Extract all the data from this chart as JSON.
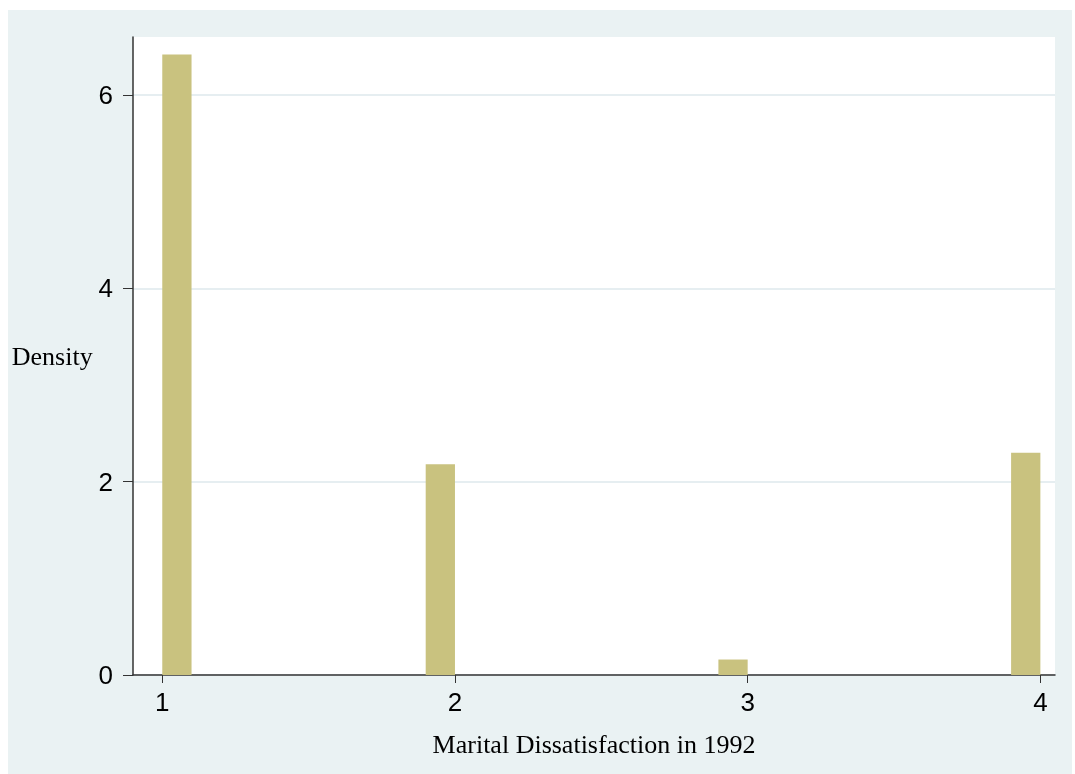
{
  "chart_data": {
    "type": "histogram",
    "xlabel": "Marital Dissatisfaction in 1992",
    "ylabel": "Density",
    "bins": [
      1,
      1.1,
      1.2,
      1.3,
      1.4,
      1.5,
      1.6,
      1.7,
      1.8,
      1.9,
      2,
      2.1,
      2.2,
      2.3,
      2.4,
      2.5,
      2.6,
      2.7,
      2.8,
      2.9,
      3,
      3.1,
      3.2,
      3.3,
      3.4,
      3.5,
      3.6,
      3.7,
      3.8,
      3.9,
      4
    ],
    "values": [
      6.42,
      0,
      0,
      0,
      0,
      0,
      0,
      0,
      0,
      2.18,
      0,
      0,
      0,
      0,
      0,
      0,
      0,
      0,
      0,
      0.16,
      0,
      0,
      0,
      0,
      0,
      0,
      0,
      0,
      0,
      2.3
    ],
    "color": "#c9c27f",
    "xlim": [
      0.9,
      4.05
    ],
    "xticks": [
      1,
      2,
      3,
      4
    ],
    "ylim": [
      0,
      6.6
    ],
    "yticks": [
      0,
      2,
      4,
      6
    ],
    "grid": "y"
  }
}
